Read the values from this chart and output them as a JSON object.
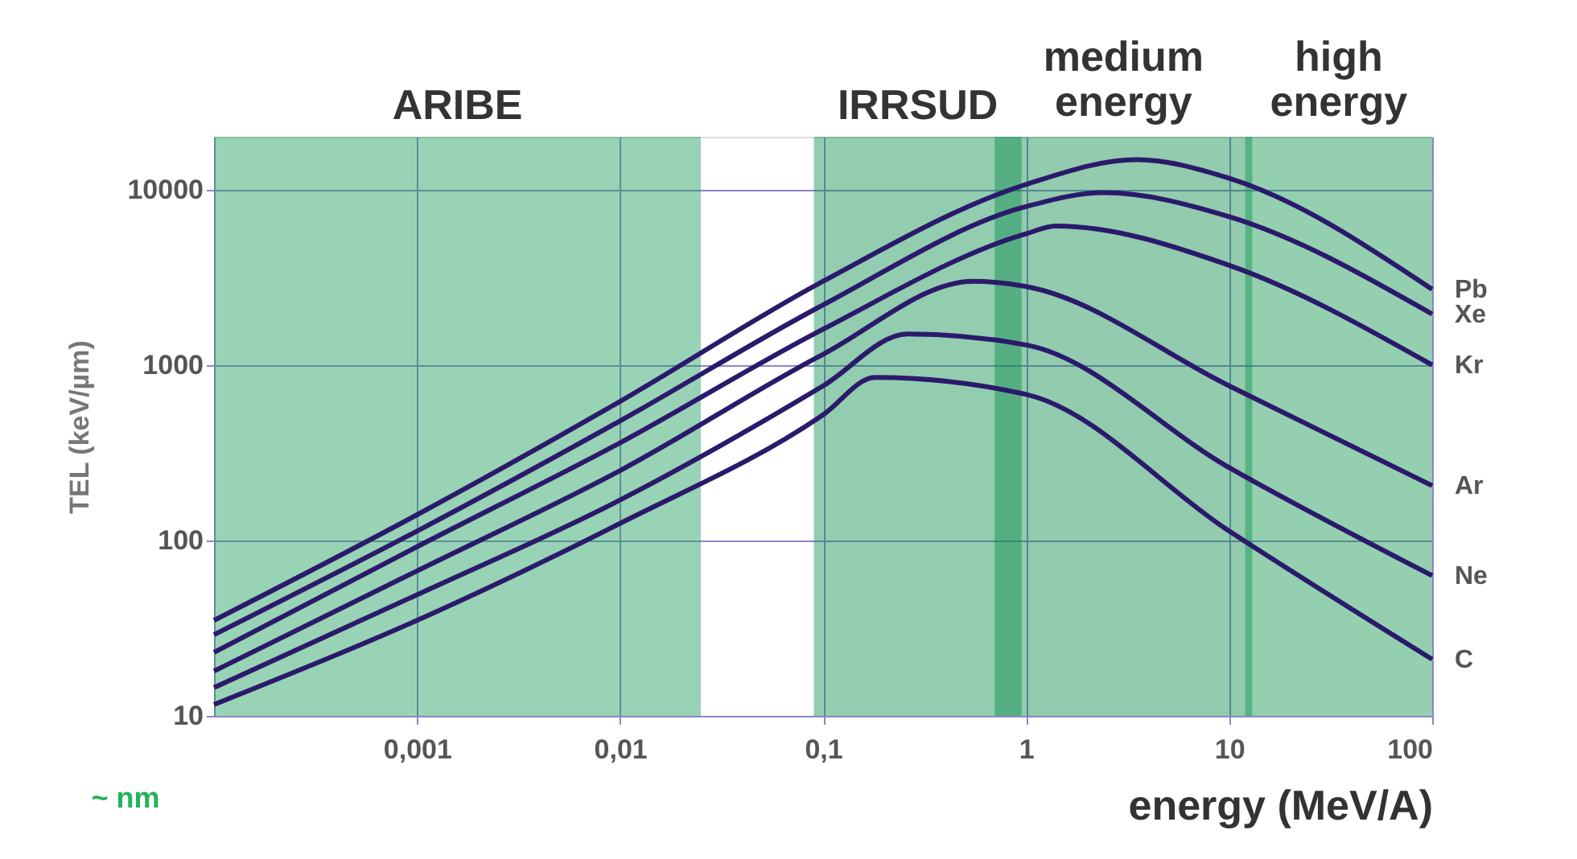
{
  "chart_data": {
    "type": "line",
    "xlabel": "energy  (MeV/A)",
    "ylabel": "TEL  (keV/µm)",
    "log": "xy",
    "grid": true,
    "marker": "none",
    "line_style": "solid",
    "xlim": [
      0.0001,
      100
    ],
    "ylim": [
      10,
      20000
    ],
    "xticks": [
      {
        "value": 0.001,
        "label": "0,001"
      },
      {
        "value": 0.01,
        "label": "0,01"
      },
      {
        "value": 0.1,
        "label": "0,1"
      },
      1,
      10,
      100
    ],
    "yticks": [
      10,
      100,
      1000,
      10000
    ],
    "series": [
      {
        "name": "Pb",
        "color": "#2b1a6b",
        "x": [
          0.0001,
          0.001,
          0.01,
          0.1,
          1,
          3.5,
          10,
          100
        ],
        "values": [
          35,
          140,
          620,
          3000,
          10700,
          14800,
          11600,
          2700
        ]
      },
      {
        "name": "Xe",
        "color": "#2b1a6b",
        "x": [
          0.0001,
          0.001,
          0.01,
          0.1,
          1,
          2.4,
          10,
          100
        ],
        "values": [
          29,
          113,
          480,
          2200,
          8000,
          9600,
          7000,
          1950
        ]
      },
      {
        "name": "Kr",
        "color": "#2b1a6b",
        "x": [
          0.0001,
          0.001,
          0.01,
          0.1,
          1,
          1.4,
          10,
          100
        ],
        "values": [
          23,
          92,
          360,
          1600,
          5600,
          6200,
          3700,
          1000
        ]
      },
      {
        "name": "Ar",
        "color": "#2b1a6b",
        "x": [
          0.0001,
          0.001,
          0.01,
          0.1,
          0.55,
          1,
          10,
          100
        ],
        "values": [
          18,
          67,
          250,
          1150,
          3000,
          2800,
          760,
          205
        ]
      },
      {
        "name": "Ne",
        "color": "#2b1a6b",
        "x": [
          0.0001,
          0.001,
          0.01,
          0.1,
          0.26,
          1,
          10,
          100
        ],
        "values": [
          14.5,
          49,
          170,
          760,
          1500,
          1300,
          260,
          63
        ]
      },
      {
        "name": "C",
        "color": "#2b1a6b",
        "x": [
          0.0001,
          0.001,
          0.01,
          0.1,
          0.18,
          1,
          10,
          100
        ],
        "values": [
          11.6,
          35,
          125,
          520,
          850,
          680,
          113,
          21
        ]
      }
    ],
    "bands": [
      {
        "axis": "x",
        "from": 0.0001,
        "to": 0.025,
        "label": "ARIBE",
        "color": "#1a9e5c"
      },
      {
        "axis": "x",
        "from": 0.09,
        "to": 0.95,
        "label": "IRRSUD",
        "color": "#0f9050"
      },
      {
        "axis": "x",
        "from": 0.7,
        "to": 13,
        "label": "medium energy",
        "color": "#0d8c4c"
      },
      {
        "axis": "x",
        "from": 12,
        "to": 100,
        "label": "high energy",
        "color": "#12964f"
      }
    ],
    "annotations": [
      "~ nm"
    ]
  }
}
